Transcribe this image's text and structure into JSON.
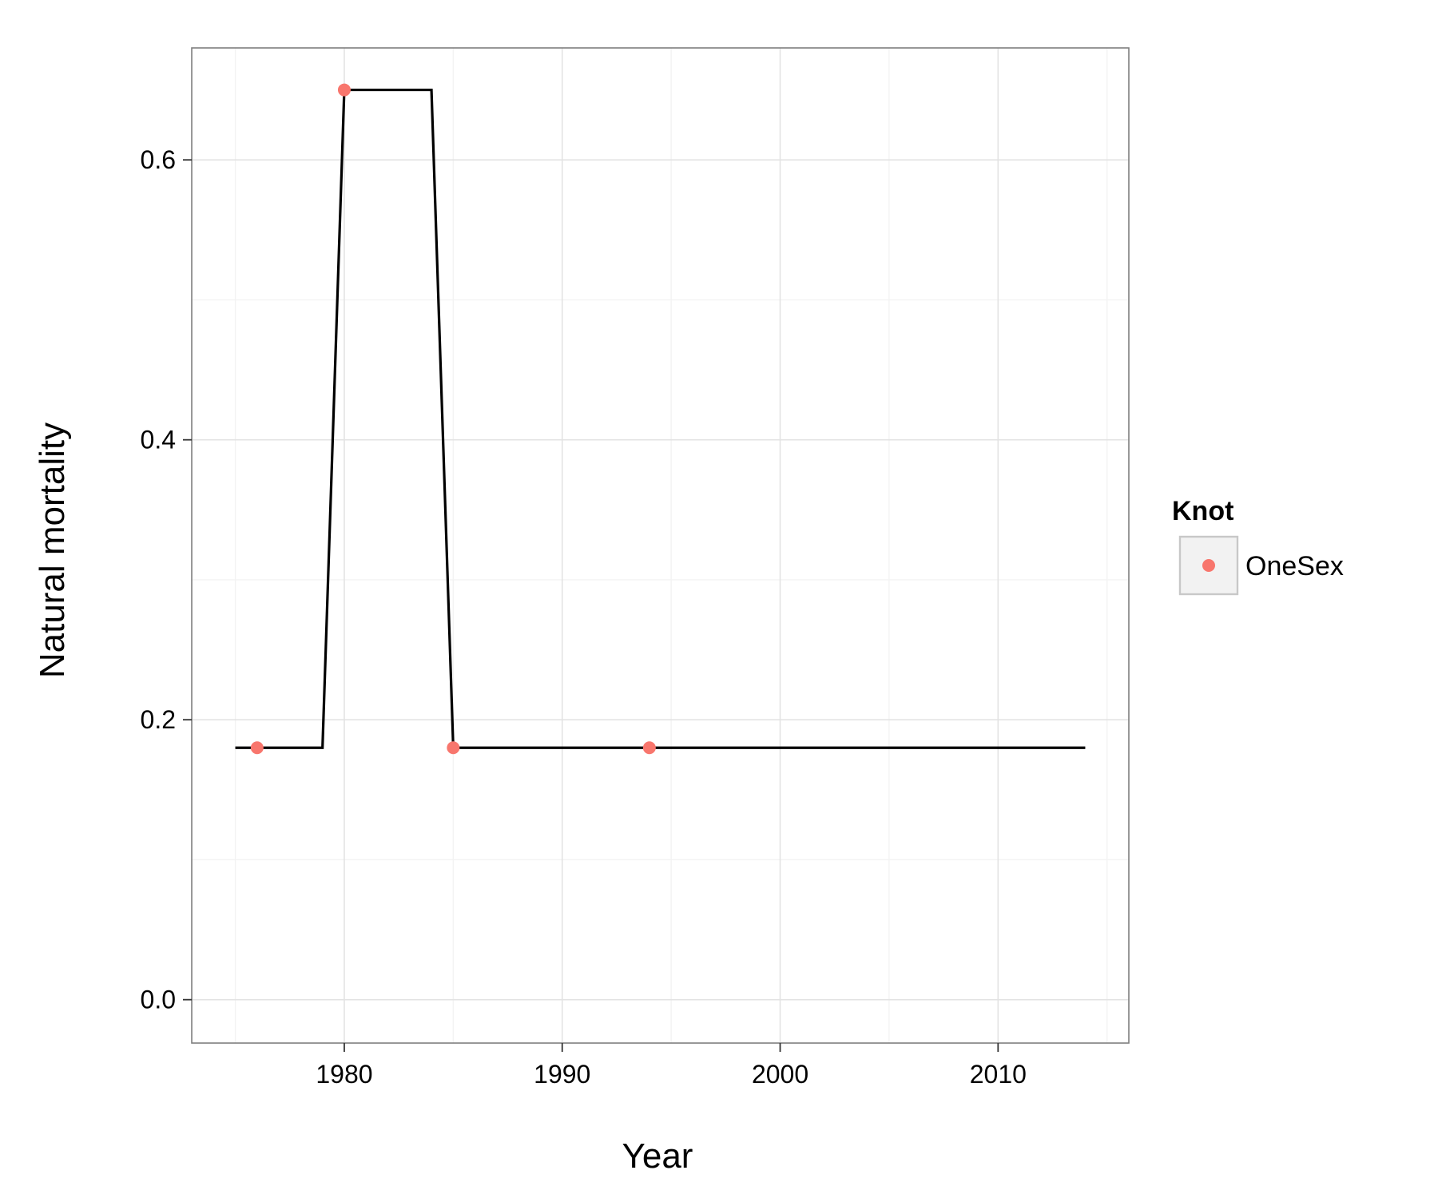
{
  "chart_data": {
    "type": "line",
    "xlabel": "Year",
    "ylabel": "Natural mortality",
    "xlim": [
      1973,
      2016
    ],
    "ylim": [
      -0.031,
      0.68
    ],
    "x_ticks": [
      1980,
      1990,
      2000,
      2010
    ],
    "x_tick_labels": [
      "1980",
      "1990",
      "2000",
      "2010"
    ],
    "x_minor_ticks": [
      1975,
      1985,
      1995,
      2005,
      2015
    ],
    "y_ticks": [
      0.0,
      0.2,
      0.4,
      0.6
    ],
    "y_tick_labels": [
      "0.0",
      "0.2",
      "0.4",
      "0.6"
    ],
    "y_minor_ticks": [
      0.1,
      0.3,
      0.5
    ],
    "grid": true,
    "line_series": {
      "color": "#000000",
      "x": [
        1975,
        1979,
        1980,
        1984,
        1985,
        2014
      ],
      "y": [
        0.18,
        0.18,
        0.65,
        0.65,
        0.18,
        0.18
      ]
    },
    "points_series": {
      "name": "OneSex",
      "color": "#F8766D",
      "x": [
        1976,
        1980,
        1985,
        1994
      ],
      "y": [
        0.18,
        0.65,
        0.18,
        0.18
      ]
    },
    "legend": {
      "title": "Knot",
      "position": "right",
      "items": [
        {
          "label": "OneSex",
          "color": "#F8766D"
        }
      ]
    }
  }
}
